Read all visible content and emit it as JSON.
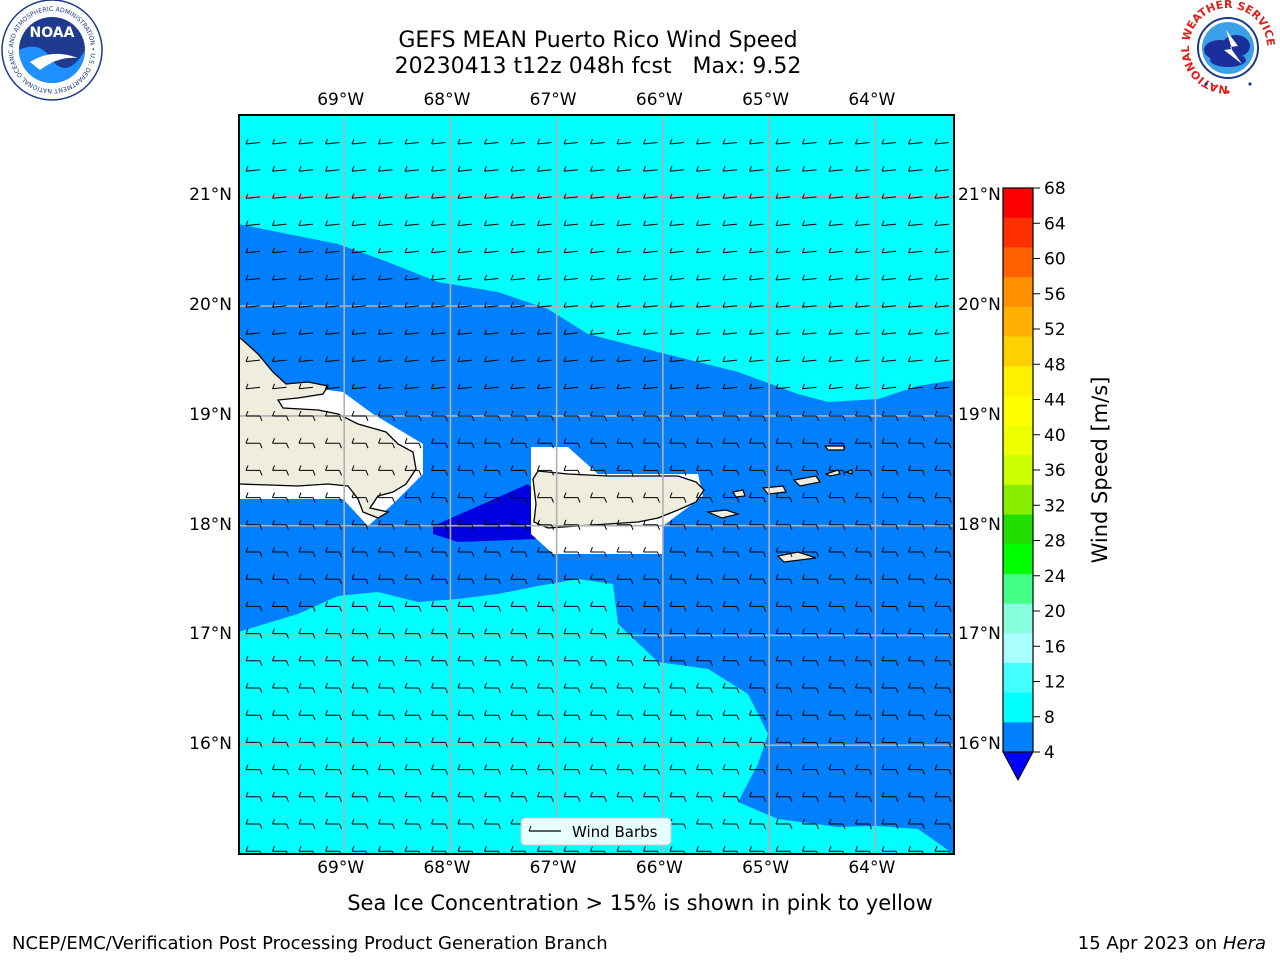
{
  "title": {
    "line1": "GEFS MEAN Puerto Rico Wind Speed",
    "line2": "20230413 t12z 048h fcst   Max: 9.52"
  },
  "map": {
    "lon_labels": [
      "69°W",
      "68°W",
      "67°W",
      "66°W",
      "65°W",
      "64°W"
    ],
    "lat_labels": [
      "21°N",
      "20°N",
      "19°N",
      "18°N",
      "17°N",
      "16°N"
    ],
    "lon_range": [
      -70.0,
      -63.25
    ],
    "lat_range": [
      15.0,
      21.75
    ],
    "legend_label": "Wind Barbs",
    "colors": {
      "ocean_light": "#00FFFF",
      "ocean_mid": "#0080FF",
      "ocean_dark": "#0000E0",
      "land": "#EEEDDE",
      "white_region": "#FFFFFF",
      "grid": "#B0B0B0"
    }
  },
  "colorbar": {
    "label": "Wind Speed [m/s]",
    "ticks": [
      "68",
      "64",
      "60",
      "56",
      "52",
      "48",
      "44",
      "40",
      "36",
      "32",
      "28",
      "24",
      "20",
      "16",
      "12",
      "8",
      "4"
    ],
    "colors": [
      "#FF0000",
      "#FF3000",
      "#FF6000",
      "#FF9000",
      "#FFB000",
      "#FFD000",
      "#FFF000",
      "#FFFF00",
      "#EEFF00",
      "#CCFF00",
      "#88EE00",
      "#22DD00",
      "#00FF00",
      "#44FF88",
      "#88FFDD",
      "#AAFFFF",
      "#44FFFF",
      "#00FFFF",
      "#0080FF"
    ],
    "extend_color": "#0000FF"
  },
  "footer": {
    "note": "Sea Ice Concentration > 15% is shown in pink to yellow",
    "left": "NCEP/EMC/Verification Post Processing Product Generation Branch",
    "right_date": "15 Apr 2023 on ",
    "right_host": "Hera"
  },
  "logos": {
    "noaa_text": "NOAA",
    "noaa_ring": "NATIONAL OCEANIC AND ATMOSPHERIC ADMINISTRATION • U.S. DEPARTMENT OF COMMERCE",
    "nws_ring": "NATIONAL WEATHER SERVICE"
  },
  "icons": {
    "noaa_logo": "noaa-logo-icon",
    "nws_logo": "nws-logo-icon"
  }
}
